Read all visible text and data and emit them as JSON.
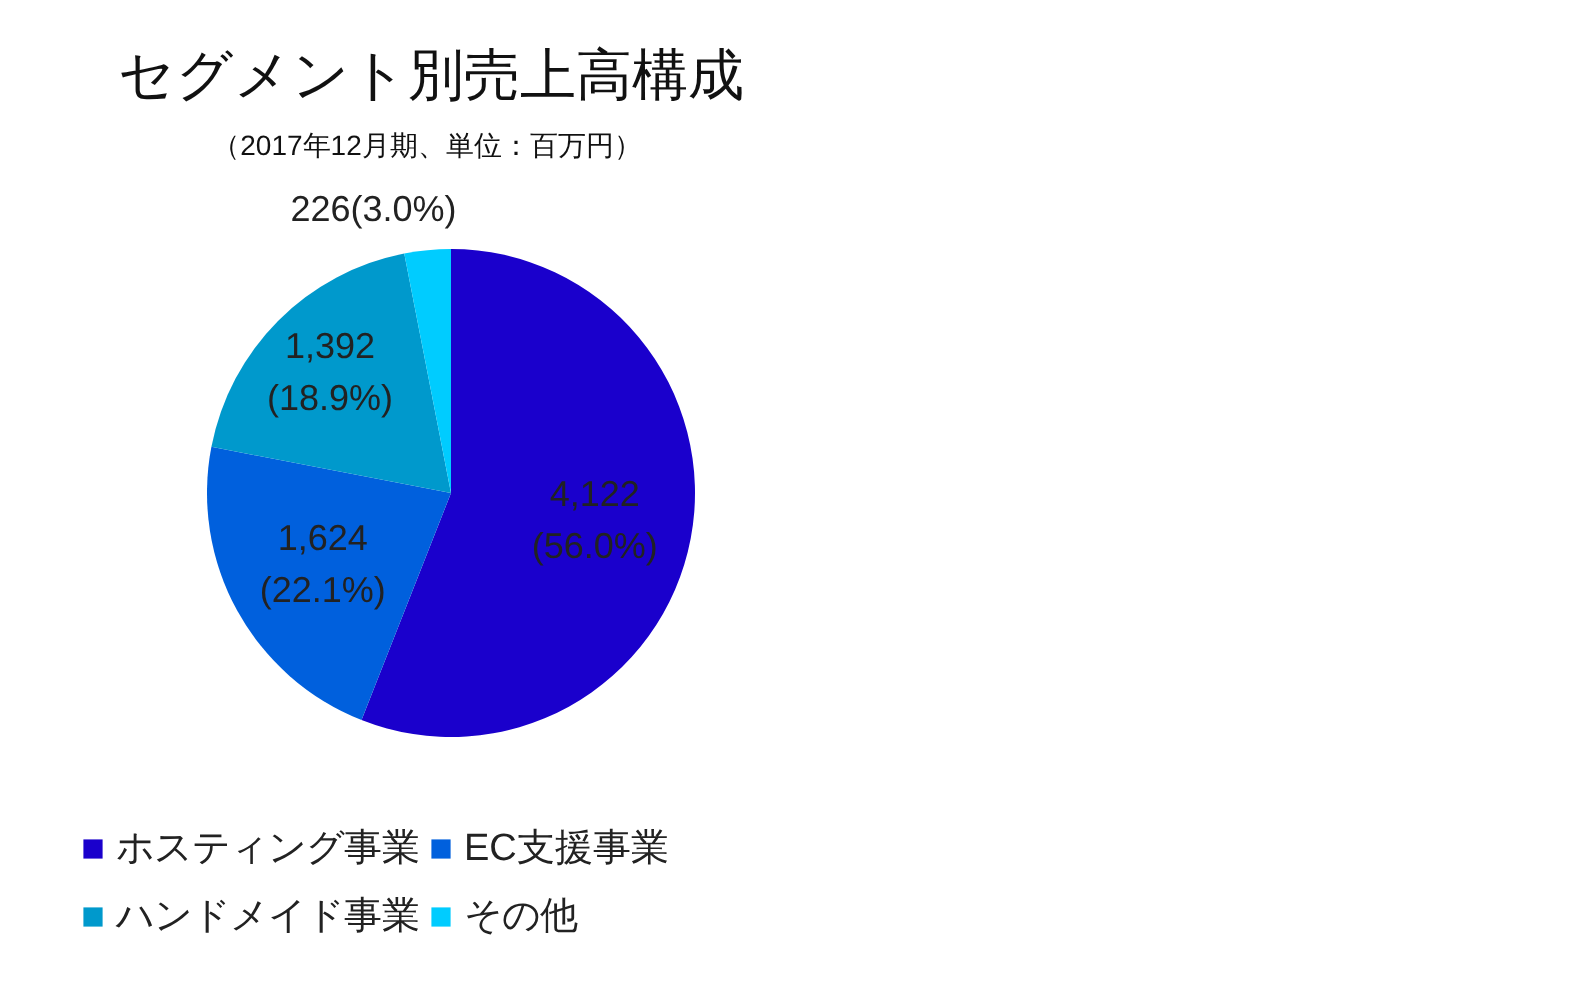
{
  "chart_data": {
    "type": "pie",
    "title": "セグメント別売上高構成",
    "subtitle": "（2017年12月期、単位：百万円）",
    "categories": [
      "ホスティング事業",
      "EC支援事業",
      "ハンドメイド事業",
      "その他"
    ],
    "values": [
      4122,
      1624,
      1392,
      226
    ],
    "colors": [
      "#1a00cc",
      "#0060dd",
      "#0099cc",
      "#00ccff"
    ],
    "value_labels": [
      "4,122\n(56.0%)",
      "1,624\n(22.1%)",
      "1,392\n(18.9%)",
      "226(3.0%)"
    ],
    "legend": "bottom"
  }
}
